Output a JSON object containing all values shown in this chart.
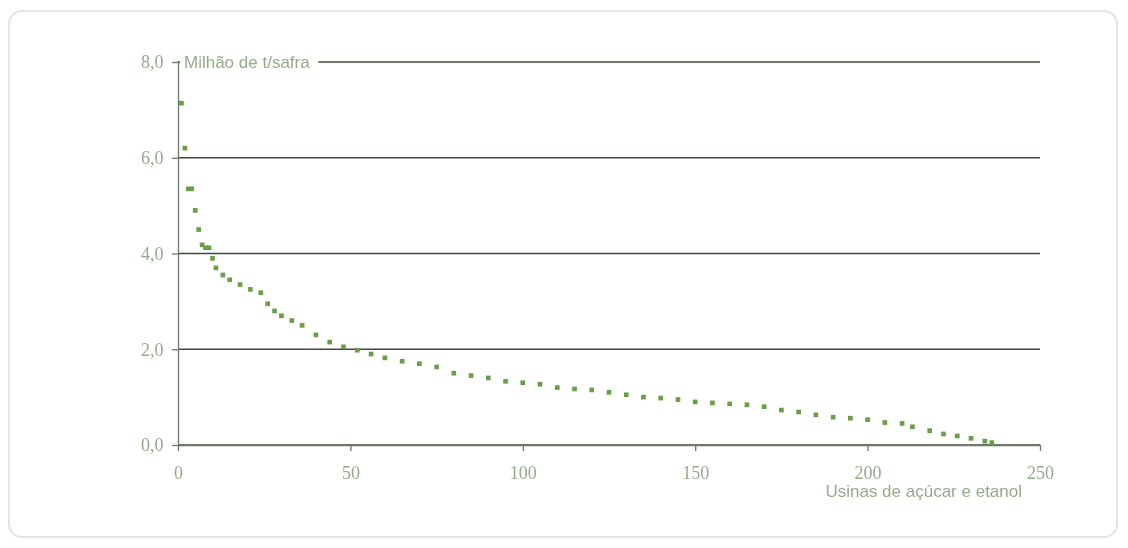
{
  "chart_data": {
    "type": "scatter",
    "xlabel": "Usinas de açúcar e etanol",
    "ylabel": "Milhão de t/safra",
    "xlim": [
      0,
      250
    ],
    "xticks": [
      0,
      50,
      100,
      150,
      200,
      250
    ],
    "ylim": [
      0,
      8
    ],
    "yticks": [
      {
        "value": 0,
        "label": "0,0"
      },
      {
        "value": 2,
        "label": "2,0"
      },
      {
        "value": 4,
        "label": "4,0"
      },
      {
        "value": 6,
        "label": "6,0"
      },
      {
        "value": 8,
        "label": "8,0"
      }
    ],
    "grid": "y",
    "marker": "square",
    "series": [
      {
        "color": "#6a9f4a",
        "x": [
          1,
          2,
          3,
          4,
          5,
          6,
          7,
          8,
          9,
          10,
          11,
          13,
          15,
          18,
          21,
          24,
          26,
          28,
          30,
          33,
          36,
          40,
          44,
          48,
          52,
          56,
          60,
          65,
          70,
          75,
          80,
          85,
          90,
          95,
          100,
          105,
          110,
          115,
          120,
          125,
          130,
          135,
          140,
          145,
          150,
          155,
          160,
          165,
          170,
          175,
          180,
          185,
          190,
          195,
          200,
          205,
          210,
          213,
          218,
          222,
          226,
          230,
          234,
          236
        ],
        "values": [
          7.14,
          6.2,
          5.35,
          5.35,
          4.9,
          4.5,
          4.18,
          4.12,
          4.12,
          3.9,
          3.7,
          3.55,
          3.45,
          3.35,
          3.25,
          3.18,
          2.95,
          2.8,
          2.7,
          2.6,
          2.5,
          2.3,
          2.15,
          2.05,
          1.98,
          1.9,
          1.82,
          1.75,
          1.7,
          1.63,
          1.5,
          1.45,
          1.4,
          1.33,
          1.3,
          1.27,
          1.2,
          1.17,
          1.15,
          1.1,
          1.05,
          1.0,
          0.98,
          0.95,
          0.9,
          0.88,
          0.86,
          0.84,
          0.8,
          0.73,
          0.69,
          0.63,
          0.58,
          0.56,
          0.53,
          0.47,
          0.45,
          0.38,
          0.3,
          0.23,
          0.19,
          0.14,
          0.08,
          0.05
        ]
      }
    ]
  }
}
